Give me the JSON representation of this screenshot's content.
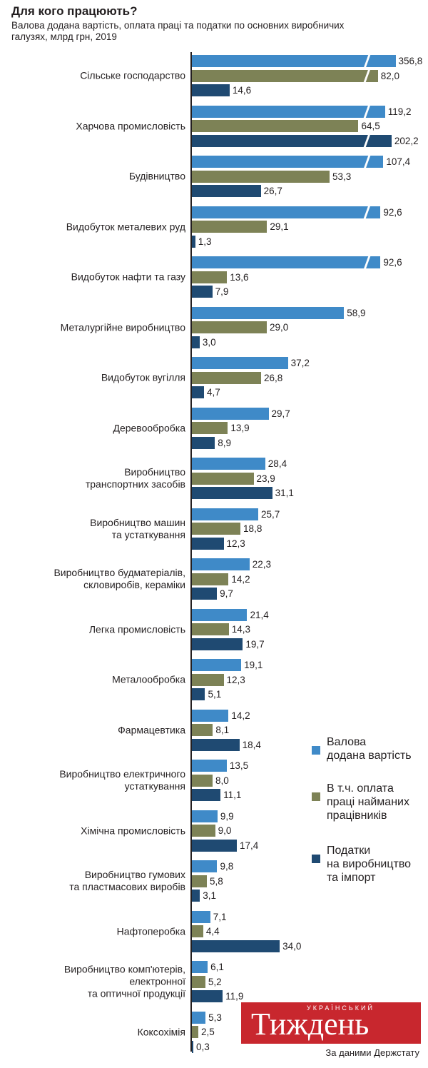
{
  "title": "Для кого працюють?",
  "chart_data": {
    "type": "bar",
    "orientation": "horizontal",
    "subtitle": "Валова додана вартість, оплата праці та податки по основних виробничих\nгалузях, млрд грн, 2019",
    "categories": [
      "Сільське господарство",
      "Харчова промисловість",
      "Будівництво",
      "Видобуток металевих руд",
      "Видобуток нафти та газу",
      "Металургійне виробництво",
      "Видобуток вугілля",
      "Деревообробка",
      "Виробництво\nтранспортних засобів",
      "Виробництво машин\nта устаткування",
      "Виробництво будматеріалів,\nскловиробів, кераміки",
      "Легка промисловість",
      "Металообробка",
      "Фармацевтика",
      "Виробництво електричного\nустаткування",
      "Хімічна промисловість",
      "Виробництво гумових\nта пластмасових виробів",
      "Нафтоперобка",
      "Виробництво комп'ютерів,\nелектронної\nта оптичної продукції",
      "Коксохімія"
    ],
    "series": [
      {
        "name": "Валова\nдодана вартість",
        "color": "#3f8ac8",
        "values": [
          356.8,
          119.2,
          107.4,
          92.6,
          92.6,
          58.9,
          37.2,
          29.7,
          28.4,
          25.7,
          22.3,
          21.4,
          19.1,
          14.2,
          13.5,
          9.9,
          9.8,
          7.1,
          6.1,
          5.3
        ],
        "value_labels": [
          "356,8",
          "119,2",
          "107,4",
          "92,6",
          "92,6",
          "58,9",
          "37,2",
          "29,7",
          "28,4",
          "25,7",
          "22,3",
          "21,4",
          "19,1",
          "14,2",
          "13,5",
          "9,9",
          "9,8",
          "7,1",
          "6,1",
          "5,3"
        ]
      },
      {
        "name": "В т.ч. оплата\nпраці найманих\nпрацівників",
        "color": "#7d8256",
        "values": [
          82.0,
          64.5,
          53.3,
          29.1,
          13.6,
          29.0,
          26.8,
          13.9,
          23.9,
          18.8,
          14.2,
          14.3,
          12.3,
          8.1,
          8.0,
          9.0,
          5.8,
          4.4,
          5.2,
          2.5
        ],
        "value_labels": [
          "82,0",
          "64,5",
          "53,3",
          "29,1",
          "13,6",
          "29,0",
          "26,8",
          "13,9",
          "23,9",
          "18,8",
          "14,2",
          "14,3",
          "12,3",
          "8,1",
          "8,0",
          "9,0",
          "5,8",
          "4,4",
          "5,2",
          "2,5"
        ]
      },
      {
        "name": "Податки\nна виробництво\nта імпорт",
        "color": "#1f4a72",
        "values": [
          14.6,
          202.2,
          26.7,
          1.3,
          7.9,
          3.0,
          4.7,
          8.9,
          31.1,
          12.3,
          9.7,
          19.7,
          5.1,
          18.4,
          11.1,
          17.4,
          3.1,
          34.0,
          11.9,
          0.3
        ],
        "value_labels": [
          "14,6",
          "202,2",
          "26,7",
          "1,3",
          "7,9",
          "3,0",
          "4,7",
          "8,9",
          "31,1",
          "12,3",
          "9,7",
          "19,7",
          "5,1",
          "18,4",
          "11,1",
          "17,4",
          "3,1",
          "34,0",
          "11,9",
          "0,3"
        ]
      }
    ]
  },
  "logo": {
    "small": "УКРАЇНСЬКИЙ",
    "big": "Тиждень"
  },
  "source": "За даними Держстату"
}
